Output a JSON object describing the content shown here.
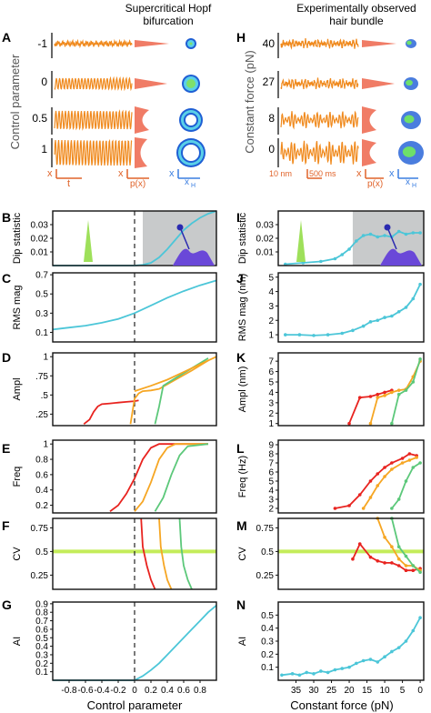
{
  "headers": {
    "left": [
      "Supercritical Hopf",
      "bifurcation"
    ],
    "right": [
      "Experimentally observed",
      "hair bundle"
    ]
  },
  "panel_letters": [
    "A",
    "B",
    "C",
    "D",
    "E",
    "F",
    "G",
    "H",
    "I",
    "J",
    "K",
    "L",
    "M",
    "N"
  ],
  "colors": {
    "orange": "#f08a1e",
    "salmon": "#f07c66",
    "cyan": "#4cc6d8",
    "red": "#e8231f",
    "amber": "#f6a623",
    "green": "#5cc87a",
    "lime": "#c4ec5a",
    "purple": "#6a48d8",
    "gray": "#c8cacb"
  },
  "panelA": {
    "ylabel": "Control parameter",
    "row_labels": [
      "-1",
      "0",
      "0.5",
      "1"
    ],
    "scale_labels": {
      "x": "x",
      "t": "t",
      "px": "p(x)",
      "xH": "x",
      "xH_sub": "H"
    }
  },
  "panelH": {
    "ylabel": "Constant force (pN)",
    "row_labels": [
      "40",
      "27",
      "8",
      "0"
    ],
    "scale_labels": {
      "nm": "10 nm",
      "ms": "500 ms",
      "x": "x",
      "px": "p(x)",
      "xH": "x",
      "xH_sub": "H"
    }
  },
  "shared_xlabels": {
    "left": "Control parameter",
    "right": "Constant force (pN)"
  },
  "chart_data": [
    {
      "panel": "B",
      "type": "line",
      "ylabel": "Dip statistic",
      "xlim": [
        -1,
        1
      ],
      "ylim": [
        0,
        0.04
      ],
      "yticks": [
        "0.01",
        "0.02",
        "0.03"
      ],
      "ytick_values": [
        0.01,
        0.02,
        0.03
      ],
      "shaded_region": [
        0.1,
        1
      ],
      "series": [
        {
          "x": [
            -1,
            -0.6,
            -0.2,
            0,
            0.1,
            0.2,
            0.3,
            0.4,
            0.5,
            0.6,
            0.7,
            0.8,
            0.9,
            1.0
          ],
          "values": [
            0,
            0,
            0,
            0,
            0.0005,
            0.002,
            0.006,
            0.012,
            0.019,
            0.026,
            0.031,
            0.035,
            0.038,
            0.04
          ]
        }
      ]
    },
    {
      "panel": "C",
      "type": "line",
      "ylabel": "RMS mag",
      "xlim": [
        -1,
        1
      ],
      "ylim": [
        0,
        0.72
      ],
      "yticks": [
        "0.1",
        "0.3",
        "0.5",
        "0.7"
      ],
      "ytick_values": [
        0.1,
        0.3,
        0.5,
        0.7
      ],
      "series": [
        {
          "x": [
            -1,
            -0.8,
            -0.6,
            -0.4,
            -0.2,
            0,
            0.2,
            0.4,
            0.6,
            0.8,
            1.0
          ],
          "values": [
            0.13,
            0.15,
            0.17,
            0.2,
            0.24,
            0.3,
            0.38,
            0.46,
            0.53,
            0.59,
            0.64
          ]
        }
      ]
    },
    {
      "panel": "D",
      "type": "line",
      "ylabel": "Ampl",
      "xlim": [
        -1,
        1
      ],
      "ylim": [
        0.1,
        1.05
      ],
      "yticks": [
        ".25",
        ".5",
        ".75",
        "1"
      ],
      "ytick_values": [
        0.25,
        0.5,
        0.75,
        1
      ],
      "series": [
        {
          "name": "red",
          "x": [
            -0.62,
            -0.55,
            -0.5,
            -0.45,
            -0.4,
            -0.3,
            -0.2,
            -0.1,
            0,
            0.05
          ],
          "values": [
            0.12,
            0.18,
            0.28,
            0.35,
            0.38,
            0.39,
            0.4,
            0.41,
            0.42,
            0.43
          ]
        },
        {
          "name": "orange",
          "x": [
            -0.05,
            0,
            0.05,
            0.1,
            0.2,
            0.3,
            0.5,
            0.7,
            0.9
          ],
          "values": [
            0.12,
            0.45,
            0.52,
            0.55,
            0.56,
            0.58,
            0.7,
            0.82,
            0.95
          ]
        },
        {
          "name": "green",
          "x": [
            0.25,
            0.3,
            0.35,
            0.5,
            0.7,
            0.9
          ],
          "values": [
            0.12,
            0.35,
            0.62,
            0.72,
            0.85,
            0.98
          ]
        },
        {
          "name": "upper",
          "x": [
            0,
            0.2,
            0.4,
            0.6,
            0.8,
            1.0
          ],
          "values": [
            0.55,
            0.62,
            0.7,
            0.8,
            0.9,
            1.0
          ]
        }
      ]
    },
    {
      "panel": "E",
      "type": "line",
      "ylabel": "Freq",
      "xlim": [
        -1,
        1
      ],
      "ylim": [
        0.1,
        1.05
      ],
      "yticks": [
        "0.2",
        "0.4",
        "0.6",
        "0.8",
        "1"
      ],
      "ytick_values": [
        0.2,
        0.4,
        0.6,
        0.8,
        1
      ],
      "series": [
        {
          "name": "red",
          "x": [
            -0.3,
            -0.2,
            -0.1,
            0,
            0.1,
            0.2,
            0.3,
            0.5,
            0.9
          ],
          "values": [
            0.12,
            0.2,
            0.35,
            0.55,
            0.8,
            0.95,
            1.0,
            1.0,
            1.0
          ]
        },
        {
          "name": "orange",
          "x": [
            0,
            0.1,
            0.2,
            0.3,
            0.4,
            0.5,
            0.9
          ],
          "values": [
            0.12,
            0.25,
            0.5,
            0.8,
            0.95,
            1.0,
            1.0
          ]
        },
        {
          "name": "green",
          "x": [
            0.25,
            0.35,
            0.45,
            0.55,
            0.65,
            0.9
          ],
          "values": [
            0.12,
            0.3,
            0.6,
            0.85,
            0.97,
            1.0
          ]
        }
      ]
    },
    {
      "panel": "F",
      "type": "line",
      "ylabel": "CV",
      "xlim": [
        -1,
        1
      ],
      "ylim": [
        0.1,
        0.85
      ],
      "yticks": [
        "0.25",
        "0.5",
        "0.75"
      ],
      "ytick_values": [
        0.25,
        0.5,
        0.75
      ],
      "hline": 0.5,
      "series": [
        {
          "name": "red",
          "x": [
            0.08,
            0.1,
            0.15,
            0.2,
            0.25
          ],
          "values": [
            0.85,
            0.55,
            0.35,
            0.2,
            0.1
          ]
        },
        {
          "name": "orange",
          "x": [
            0.3,
            0.32,
            0.36,
            0.4,
            0.45
          ],
          "values": [
            0.85,
            0.55,
            0.35,
            0.2,
            0.1
          ]
        },
        {
          "name": "green",
          "x": [
            0.55,
            0.57,
            0.6,
            0.65,
            0.7
          ],
          "values": [
            0.85,
            0.55,
            0.35,
            0.2,
            0.1
          ]
        }
      ]
    },
    {
      "panel": "G",
      "type": "line",
      "ylabel": "AI",
      "xlim": [
        -1,
        1
      ],
      "ylim": [
        0,
        0.92
      ],
      "yticks": [
        "0.1",
        "0.2",
        "0.3",
        "0.4",
        "0.5",
        "0.6",
        "0.7",
        "0.8",
        "0.9"
      ],
      "ytick_values": [
        0.1,
        0.2,
        0.3,
        0.4,
        0.5,
        0.6,
        0.7,
        0.8,
        0.9
      ],
      "xticks": [
        "-0.8",
        "-0.6",
        "-0.4",
        "-0.2",
        "0",
        "0.2",
        "0.4",
        "0.6",
        "0.8"
      ],
      "xtick_values": [
        -0.8,
        -0.6,
        -0.4,
        -0.2,
        0,
        0.2,
        0.4,
        0.6,
        0.8
      ],
      "series": [
        {
          "x": [
            -1,
            0,
            0.1,
            0.2,
            0.3,
            0.4,
            0.5,
            0.6,
            0.7,
            0.8,
            0.9,
            1.0
          ],
          "values": [
            0,
            0,
            0.05,
            0.12,
            0.2,
            0.3,
            0.4,
            0.5,
            0.6,
            0.7,
            0.8,
            0.88
          ]
        }
      ]
    },
    {
      "panel": "I",
      "type": "line",
      "ylabel": "Dip statistic",
      "xlim": [
        40,
        -1
      ],
      "ylim": [
        0,
        0.04
      ],
      "yticks": [
        "0.01",
        "0.02",
        "0.03"
      ],
      "ytick_values": [
        0.01,
        0.02,
        0.03
      ],
      "shaded_region": [
        19,
        -1
      ],
      "series": [
        {
          "x": [
            38,
            33,
            28,
            24,
            22,
            20,
            18,
            16,
            14,
            12,
            10,
            8,
            6,
            4,
            2,
            0
          ],
          "values": [
            0.001,
            0.002,
            0.003,
            0.005,
            0.008,
            0.012,
            0.018,
            0.022,
            0.023,
            0.021,
            0.022,
            0.021,
            0.025,
            0.023,
            0.024,
            0.024
          ]
        }
      ]
    },
    {
      "panel": "J",
      "type": "line",
      "ylabel": "RMS mag (nm)",
      "xlim": [
        40,
        -1
      ],
      "ylim": [
        0.5,
        5.3
      ],
      "yticks": [
        "1",
        "2",
        "3",
        "4",
        "5"
      ],
      "ytick_values": [
        1,
        2,
        3,
        4,
        5
      ],
      "series": [
        {
          "x": [
            38,
            34,
            30,
            26,
            22,
            19,
            16,
            14,
            12,
            10,
            8,
            6,
            4,
            2,
            0
          ],
          "values": [
            1.0,
            1.0,
            0.95,
            1.0,
            1.1,
            1.3,
            1.6,
            1.9,
            2.0,
            2.2,
            2.3,
            2.6,
            2.9,
            3.5,
            4.5
          ]
        }
      ]
    },
    {
      "panel": "K",
      "type": "line",
      "ylabel": "Ampl (nm)",
      "xlim": [
        40,
        -1
      ],
      "ylim": [
        0.8,
        7.8
      ],
      "yticks": [
        "1",
        "2",
        "3",
        "4",
        "5",
        "6",
        "7"
      ],
      "ytick_values": [
        1,
        2,
        3,
        4,
        5,
        6,
        7
      ],
      "series": [
        {
          "name": "red",
          "x": [
            20,
            17,
            14,
            12,
            10,
            8
          ],
          "values": [
            1.0,
            3.5,
            3.6,
            3.8,
            4.0,
            4.2
          ]
        },
        {
          "name": "orange",
          "x": [
            14,
            12,
            10,
            8,
            6,
            4,
            2,
            0
          ],
          "values": [
            1.0,
            3.5,
            3.7,
            4.0,
            4.2,
            4.3,
            5.5,
            7.0
          ]
        },
        {
          "name": "green",
          "x": [
            8,
            6,
            4,
            2,
            0
          ],
          "values": [
            1.0,
            3.8,
            4.2,
            5.0,
            7.2
          ]
        }
      ]
    },
    {
      "panel": "L",
      "type": "line",
      "ylabel": "Freq (Hz)",
      "xlim": [
        40,
        -1
      ],
      "ylim": [
        1.5,
        9.5
      ],
      "yticks": [
        "2",
        "3",
        "4",
        "5",
        "6",
        "7",
        "8",
        "9"
      ],
      "ytick_values": [
        2,
        3,
        4,
        5,
        6,
        7,
        8,
        9
      ],
      "series": [
        {
          "name": "red",
          "x": [
            24,
            20,
            17,
            14,
            12,
            10,
            8,
            5,
            3,
            1
          ],
          "values": [
            2.0,
            2.3,
            3.5,
            5.0,
            5.8,
            6.5,
            7.0,
            7.5,
            8.0,
            7.8
          ]
        },
        {
          "name": "orange",
          "x": [
            16,
            14,
            12,
            10,
            8,
            5,
            3,
            1
          ],
          "values": [
            2.0,
            3.2,
            4.5,
            5.5,
            6.3,
            7.0,
            7.3,
            7.6
          ]
        },
        {
          "name": "green",
          "x": [
            8,
            6,
            4,
            2,
            0
          ],
          "values": [
            2.0,
            3.0,
            5.0,
            6.5,
            7.0
          ]
        }
      ]
    },
    {
      "panel": "M",
      "type": "line",
      "ylabel": "CV",
      "xlim": [
        40,
        -1
      ],
      "ylim": [
        0.1,
        0.85
      ],
      "yticks": [
        "0.25",
        "0.5",
        "0.75"
      ],
      "ytick_values": [
        0.25,
        0.5,
        0.75
      ],
      "hline": 0.5,
      "series": [
        {
          "name": "red",
          "x": [
            19,
            17,
            14,
            12,
            10,
            8,
            6,
            4,
            2,
            0
          ],
          "values": [
            0.42,
            0.58,
            0.44,
            0.4,
            0.38,
            0.38,
            0.35,
            0.3,
            0.3,
            0.32
          ]
        },
        {
          "name": "orange",
          "x": [
            12,
            10,
            8,
            6,
            4,
            2,
            0
          ],
          "values": [
            0.85,
            0.65,
            0.55,
            0.42,
            0.35,
            0.35,
            0.3
          ]
        },
        {
          "name": "green",
          "x": [
            8,
            6,
            4,
            2,
            0
          ],
          "values": [
            0.85,
            0.55,
            0.45,
            0.35,
            0.28
          ]
        }
      ]
    },
    {
      "panel": "N",
      "type": "line",
      "ylabel": "AI",
      "xlim": [
        40,
        -1
      ],
      "ylim": [
        0,
        0.6
      ],
      "yticks": [
        "0.1",
        "0.2",
        "0.3",
        "0.4",
        "0.5"
      ],
      "ytick_values": [
        0.1,
        0.2,
        0.3,
        0.4,
        0.5
      ],
      "xticks": [
        "35",
        "30",
        "25",
        "20",
        "15",
        "10",
        "5",
        "0"
      ],
      "xtick_values": [
        35,
        30,
        25,
        20,
        15,
        10,
        5,
        0
      ],
      "series": [
        {
          "x": [
            39,
            36,
            34,
            32,
            30,
            28,
            26,
            24,
            22,
            20,
            18,
            16,
            14,
            12,
            10,
            8,
            6,
            4,
            2,
            0
          ],
          "values": [
            0.04,
            0.05,
            0.04,
            0.06,
            0.05,
            0.07,
            0.06,
            0.08,
            0.09,
            0.1,
            0.13,
            0.15,
            0.16,
            0.14,
            0.18,
            0.22,
            0.25,
            0.3,
            0.38,
            0.48
          ]
        }
      ]
    }
  ]
}
